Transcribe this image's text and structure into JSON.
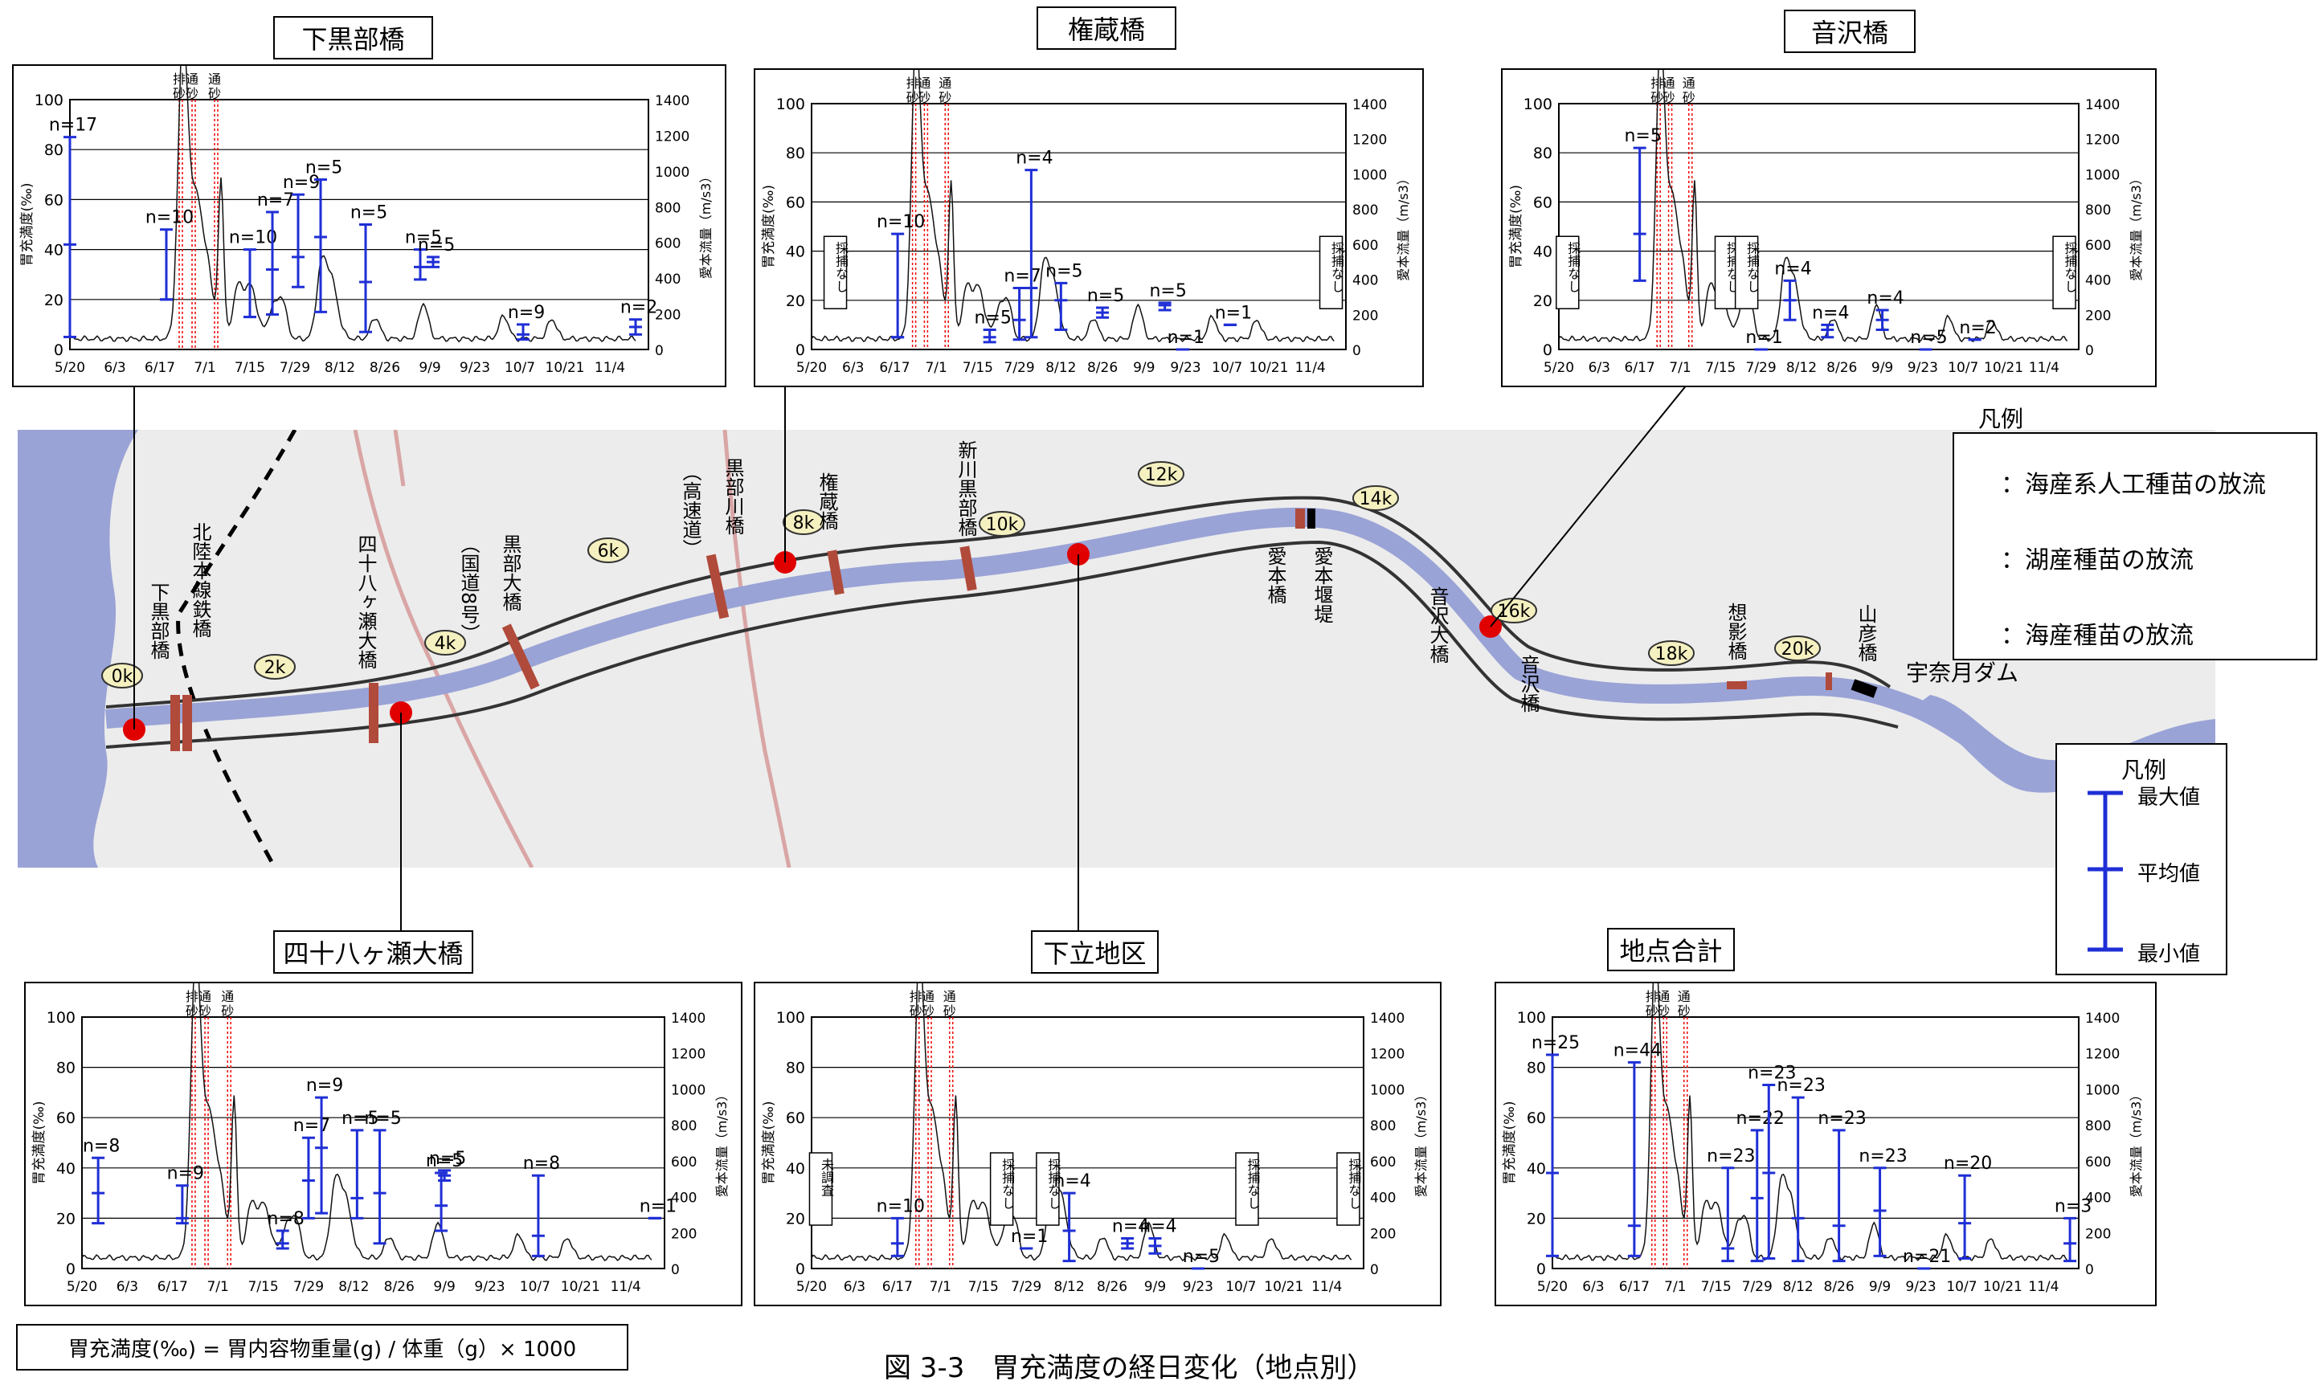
{
  "formula": "胃充満度(‰) = 胃内容物重量(g) / 体重（g）× 1000",
  "caption": "図 3-3　胃充満度の経日変化（地点別）",
  "legend_top": {
    "title": "凡例",
    "items": [
      "：海産系人工種苗の放流",
      "：湖産種苗の放流",
      "：海産種苗の放流"
    ]
  },
  "legend_right": {
    "title": "凡例",
    "max": "最大値",
    "mean": "平均値",
    "min": "最小値"
  },
  "map": {
    "dam_label": "宇奈月ダム",
    "km_markers": [
      "0k",
      "2k",
      "4k",
      "6k",
      "8k",
      "10k",
      "12k",
      "14k",
      "16k",
      "18k",
      "20k"
    ],
    "bridge_labels": {
      "shimokurobe": "下黒部橋",
      "hokuriku": "北陸本線鉄橋",
      "yosohachi": "四十八ヶ瀬大橋",
      "kokudo": "（国道8号）",
      "kurobe_ohashi": "黒部大橋",
      "kosokudo": "（高速道）",
      "kurobegawa": "黒部川橋",
      "gonzo": "権蔵橋",
      "shinkawa": "新川黒部橋",
      "aimoto": "愛本橋",
      "aimoto_entei": "愛本堰堤",
      "otosawa_ohashi": "音沢大橋",
      "otosawa": "音沢橋",
      "soei": "想影橋",
      "yamahiko": "山彦橋"
    }
  },
  "chart_common": {
    "ylabel_left": "胃充満度(‰)",
    "ylabel_right": "愛本流量（m/s3）",
    "xticks": [
      "5/20",
      "6/3",
      "6/17",
      "7/1",
      "7/15",
      "7/29",
      "8/12",
      "8/26",
      "9/9",
      "9/23",
      "10/7",
      "10/21",
      "11/4"
    ],
    "yticks_left": [
      "0",
      "20",
      "40",
      "60",
      "80",
      "100"
    ],
    "yticks_right": [
      "0",
      "200",
      "400",
      "600",
      "800",
      "1000",
      "1200",
      "1400"
    ],
    "event_labels": [
      "排砂",
      "通砂",
      "通砂"
    ]
  },
  "chart_data": [
    {
      "type": "errorbar",
      "title": "下黒部橋",
      "ylim": [
        0,
        100
      ],
      "y2lim": [
        0,
        1400
      ],
      "bars": [
        {
          "day": 0,
          "min": 5,
          "mean": 42,
          "max": 85,
          "n": "n=17"
        },
        {
          "day": 30,
          "min": 20,
          "mean": 20,
          "max": 48,
          "n": "n=10"
        },
        {
          "day": 56,
          "min": 13,
          "mean": 13,
          "max": 40,
          "n": "n=10"
        },
        {
          "day": 63,
          "min": 14,
          "mean": 32,
          "max": 55,
          "n": "n=7"
        },
        {
          "day": 71,
          "min": 25,
          "mean": 37,
          "max": 62,
          "n": "n=9"
        },
        {
          "day": 78,
          "min": 15,
          "mean": 45,
          "max": 68,
          "n": "n=5"
        },
        {
          "day": 92,
          "min": 7,
          "mean": 27,
          "max": 50,
          "n": "n=5"
        },
        {
          "day": 109,
          "min": 28,
          "mean": 33,
          "max": 40,
          "n": "n=5"
        },
        {
          "day": 113,
          "min": 33,
          "mean": 35,
          "max": 37,
          "n": "n=5"
        },
        {
          "day": 141,
          "min": 4,
          "mean": 6,
          "max": 10,
          "n": "n=9"
        },
        {
          "day": 176,
          "min": 6,
          "mean": 9,
          "max": 12,
          "n": "n=2"
        }
      ],
      "notes": []
    },
    {
      "type": "errorbar",
      "title": "権蔵橋",
      "ylim": [
        0,
        100
      ],
      "y2lim": [
        0,
        1400
      ],
      "bars": [
        {
          "day": 29,
          "min": 5,
          "mean": 5,
          "max": 47,
          "n": "n=10"
        },
        {
          "day": 60,
          "min": 3,
          "mean": 5,
          "max": 8,
          "n": "n=5"
        },
        {
          "day": 70,
          "min": 4,
          "mean": 12,
          "max": 25,
          "n": "n=7"
        },
        {
          "day": 74,
          "min": 5,
          "mean": 25,
          "max": 73,
          "n": "n=4"
        },
        {
          "day": 84,
          "min": 8,
          "mean": 20,
          "max": 27,
          "n": "n=5"
        },
        {
          "day": 98,
          "min": 13,
          "mean": 15,
          "max": 17,
          "n": "n=5"
        },
        {
          "day": 119,
          "min": 16,
          "mean": 18,
          "max": 19,
          "n": "n=5"
        },
        {
          "day": 125,
          "min": 0,
          "mean": 0,
          "max": 0,
          "n": "n=1"
        },
        {
          "day": 141,
          "min": 10,
          "mean": 10,
          "max": 10,
          "n": "n=1"
        }
      ],
      "notes": [
        {
          "day": 8,
          "text": "採捕なし"
        },
        {
          "day": 175,
          "text": "採捕なし"
        }
      ]
    },
    {
      "type": "errorbar",
      "title": "音沢橋",
      "ylim": [
        0,
        100
      ],
      "y2lim": [
        0,
        1400
      ],
      "bars": [
        {
          "day": 28,
          "min": 28,
          "mean": 47,
          "max": 82,
          "n": "n=5"
        },
        {
          "day": 70,
          "min": 0,
          "mean": 0,
          "max": 0,
          "n": "n=1"
        },
        {
          "day": 80,
          "min": 12,
          "mean": 20,
          "max": 28,
          "n": "n=4"
        },
        {
          "day": 93,
          "min": 5,
          "mean": 8,
          "max": 10,
          "n": "n=4"
        },
        {
          "day": 112,
          "min": 8,
          "mean": 12,
          "max": 16,
          "n": "n=4"
        },
        {
          "day": 127,
          "min": 0,
          "mean": 0,
          "max": 0,
          "n": "n=5"
        },
        {
          "day": 144,
          "min": 4,
          "mean": 4,
          "max": 4,
          "n": "n=2"
        }
      ],
      "notes": [
        {
          "day": 3,
          "text": "採捕なし"
        },
        {
          "day": 58,
          "text": "採捕なし"
        },
        {
          "day": 65,
          "text": "採捕なし"
        },
        {
          "day": 175,
          "text": "採捕なし"
        }
      ]
    },
    {
      "type": "errorbar",
      "title": "四十八ヶ瀬大橋",
      "ylim": [
        0,
        100
      ],
      "y2lim": [
        0,
        1400
      ],
      "bars": [
        {
          "day": 5,
          "min": 18,
          "mean": 30,
          "max": 44,
          "n": "n=8"
        },
        {
          "day": 31,
          "min": 18,
          "mean": 20,
          "max": 33,
          "n": "n=9"
        },
        {
          "day": 62,
          "min": 8,
          "mean": 10,
          "max": 15,
          "n": "n=8"
        },
        {
          "day": 70,
          "min": 20,
          "mean": 35,
          "max": 52,
          "n": "n=7"
        },
        {
          "day": 74,
          "min": 22,
          "mean": 48,
          "max": 68,
          "n": "n=9"
        },
        {
          "day": 85,
          "min": 20,
          "mean": 28,
          "max": 55,
          "n": "n=5"
        },
        {
          "day": 92,
          "min": 10,
          "mean": 30,
          "max": 55,
          "n": "n=5"
        },
        {
          "day": 111,
          "min": 15,
          "mean": 25,
          "max": 38,
          "n": "n=5"
        },
        {
          "day": 112,
          "min": 35,
          "mean": 37,
          "max": 39,
          "n": "n=5"
        },
        {
          "day": 141,
          "min": 5,
          "mean": 13,
          "max": 37,
          "n": "n=8"
        },
        {
          "day": 177,
          "min": 20,
          "mean": 20,
          "max": 20,
          "n": "n=1"
        }
      ],
      "notes": []
    },
    {
      "type": "errorbar",
      "title": "下立地区",
      "ylim": [
        0,
        100
      ],
      "y2lim": [
        0,
        1400
      ],
      "bars": [
        {
          "day": 28,
          "min": 5,
          "mean": 10,
          "max": 20,
          "n": "n=10"
        },
        {
          "day": 70,
          "min": 8,
          "mean": 8,
          "max": 8,
          "n": "n=1"
        },
        {
          "day": 84,
          "min": 3,
          "mean": 15,
          "max": 30,
          "n": "n=4"
        },
        {
          "day": 103,
          "min": 8,
          "mean": 10,
          "max": 12,
          "n": "n=4"
        },
        {
          "day": 112,
          "min": 6,
          "mean": 9,
          "max": 12,
          "n": "n=4"
        },
        {
          "day": 126,
          "min": 0,
          "mean": 0,
          "max": 0,
          "n": "n=5"
        }
      ],
      "notes": [
        {
          "day": 3,
          "text": "未調査"
        },
        {
          "day": 62,
          "text": "採捕なし"
        },
        {
          "day": 77,
          "text": "採捕なし"
        },
        {
          "day": 142,
          "text": "採捕なし"
        },
        {
          "day": 175,
          "text": "採捕なし"
        }
      ]
    },
    {
      "type": "errorbar",
      "title": "地点合計",
      "ylim": [
        0,
        100
      ],
      "y2lim": [
        0,
        1400
      ],
      "bars": [
        {
          "day": 0,
          "min": 5,
          "mean": 38,
          "max": 85,
          "n": "n=25"
        },
        {
          "day": 28,
          "min": 5,
          "mean": 17,
          "max": 82,
          "n": "n=44"
        },
        {
          "day": 60,
          "min": 3,
          "mean": 8,
          "max": 40,
          "n": "n=23"
        },
        {
          "day": 70,
          "min": 3,
          "mean": 28,
          "max": 55,
          "n": "n=22"
        },
        {
          "day": 74,
          "min": 4,
          "mean": 38,
          "max": 73,
          "n": "n=23"
        },
        {
          "day": 84,
          "min": 3,
          "mean": 20,
          "max": 68,
          "n": "n=23"
        },
        {
          "day": 98,
          "min": 3,
          "mean": 17,
          "max": 55,
          "n": "n=23"
        },
        {
          "day": 112,
          "min": 5,
          "mean": 23,
          "max": 40,
          "n": "n=23"
        },
        {
          "day": 127,
          "min": 0,
          "mean": 0,
          "max": 0,
          "n": "n=21"
        },
        {
          "day": 141,
          "min": 4,
          "mean": 18,
          "max": 37,
          "n": "n=20"
        },
        {
          "day": 177,
          "min": 3,
          "mean": 10,
          "max": 20,
          "n": "n=3"
        }
      ],
      "notes": []
    }
  ]
}
